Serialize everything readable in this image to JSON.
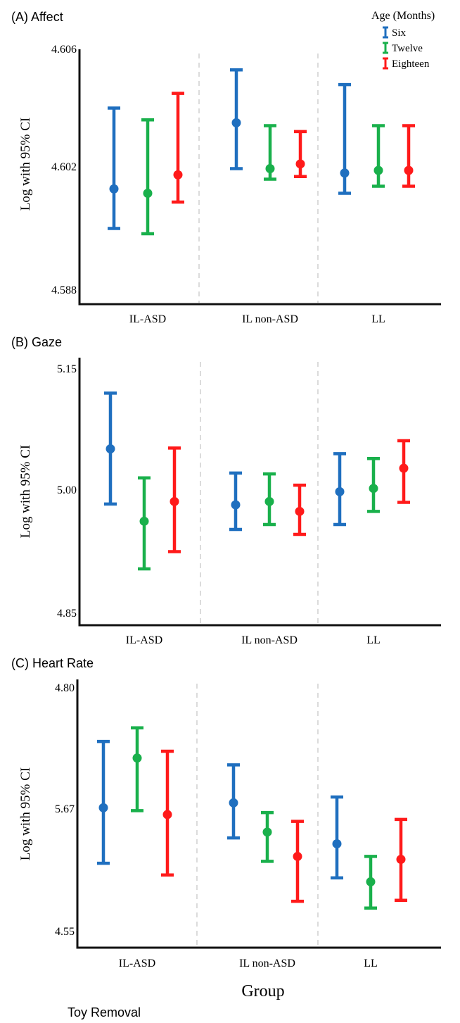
{
  "figure": {
    "xlabel": "Group",
    "footer": "Toy Removal"
  },
  "legend": {
    "title": "Age (Months)",
    "items": [
      {
        "label": "Six",
        "color": "#1f6fbf"
      },
      {
        "label": "Twelve",
        "color": "#19b04b"
      },
      {
        "label": "Eighteen",
        "color": "#ff1a1a"
      }
    ]
  },
  "colors": {
    "Six": "#1f6fbf",
    "Twelve": "#19b04b",
    "Eighteen": "#ff1a1a",
    "axis": "#111111",
    "separator": "#c8c8c8"
  },
  "chart_data": [
    {
      "type": "scatter",
      "panel": "(A)",
      "title": "Affect",
      "ylabel": "Log with 95% CI",
      "categories": [
        "IL-ASD",
        "IL non-ASD",
        "LL"
      ],
      "yticks": [
        "4.606",
        "4.602",
        "4.588"
      ],
      "ytick_values": [
        4.606,
        4.602,
        4.588
      ],
      "ylim": [
        4.588,
        4.606
      ],
      "series": [
        {
          "name": "Six",
          "values": [
            4.5995,
            4.6035,
            4.6013
          ],
          "ci_low": [
            4.595,
            4.6018,
            4.599
          ],
          "ci_high": [
            4.604,
            4.6053,
            4.6048
          ]
        },
        {
          "name": "Twelve",
          "values": [
            4.599,
            4.6018,
            4.6016
          ],
          "ci_low": [
            4.5944,
            4.6006,
            4.5998
          ],
          "ci_high": [
            4.6036,
            4.6034,
            4.6034
          ]
        },
        {
          "name": "Eighteen",
          "values": [
            4.6011,
            4.6021,
            4.6016
          ],
          "ci_low": [
            4.598,
            4.6009,
            4.5998
          ],
          "ci_high": [
            4.6045,
            4.6032,
            4.6034
          ]
        }
      ]
    },
    {
      "type": "scatter",
      "panel": "(B)",
      "title": "Gaze",
      "ylabel": "Log with 95% CI",
      "categories": [
        "IL-ASD",
        "IL non-ASD",
        "LL"
      ],
      "yticks": [
        "5.15",
        "5.00",
        "4.85"
      ],
      "ytick_values": [
        5.15,
        5.0,
        4.85
      ],
      "ylim": [
        4.85,
        5.15
      ],
      "series": [
        {
          "name": "Six",
          "values": [
            5.051,
            4.982,
            4.998
          ],
          "ci_low": [
            4.983,
            4.952,
            4.958
          ],
          "ci_high": [
            5.12,
            5.021,
            5.045
          ]
        },
        {
          "name": "Twelve",
          "values": [
            4.962,
            4.986,
            5.002
          ],
          "ci_low": [
            4.904,
            4.958,
            4.974
          ],
          "ci_high": [
            5.015,
            5.02,
            5.039
          ]
        },
        {
          "name": "Eighteen",
          "values": [
            4.986,
            4.974,
            5.027
          ],
          "ci_low": [
            4.925,
            4.946,
            4.985
          ],
          "ci_high": [
            5.052,
            5.006,
            5.061
          ]
        }
      ]
    },
    {
      "type": "scatter",
      "panel": "(C)",
      "title": "Heart Rate",
      "ylabel": "Log with 95% CI",
      "categories": [
        "IL-ASD",
        "IL non-ASD",
        "LL"
      ],
      "yticks": [
        "4.80",
        "5.67",
        "4.55"
      ],
      "ytick_values": [
        4.8,
        5.67,
        4.55
      ],
      "ylim": [
        4.55,
        4.8
      ],
      "series": [
        {
          "name": "Six",
          "values": [
            4.677,
            4.682,
            4.64
          ],
          "ci_low": [
            4.62,
            4.646,
            4.605
          ],
          "ci_high": [
            4.745,
            4.721,
            4.688
          ]
        },
        {
          "name": "Twelve",
          "values": [
            4.728,
            4.652,
            4.601
          ],
          "ci_low": [
            4.674,
            4.622,
            4.574
          ],
          "ci_high": [
            4.759,
            4.672,
            4.627
          ]
        },
        {
          "name": "Eighteen",
          "values": [
            4.67,
            4.627,
            4.624
          ],
          "ci_low": [
            4.608,
            4.581,
            4.582
          ],
          "ci_high": [
            4.735,
            4.663,
            4.665
          ]
        }
      ]
    }
  ]
}
